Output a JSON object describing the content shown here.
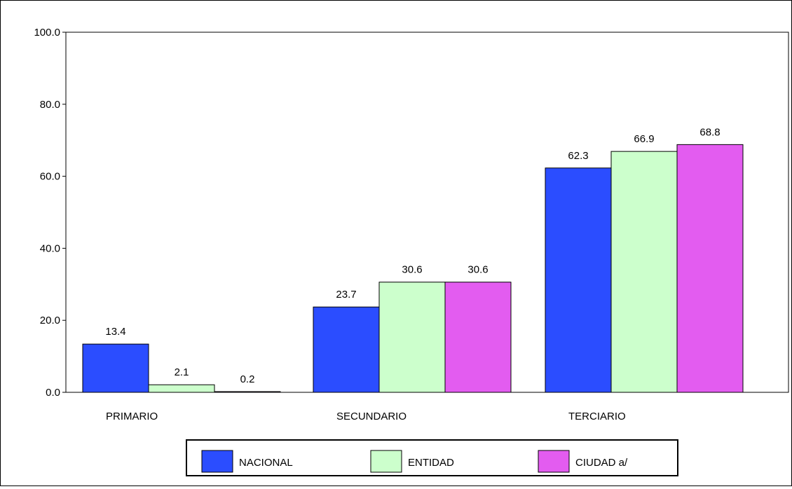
{
  "chart_data": {
    "type": "bar",
    "categories": [
      "PRIMARIO",
      "SECUNDARIO",
      "TERCIARIO"
    ],
    "series": [
      {
        "name": "NACIONAL",
        "color": "#2b4dff",
        "values": [
          13.4,
          23.7,
          62.3
        ],
        "labels": [
          "13.4",
          "23.7",
          "62.3"
        ]
      },
      {
        "name": "ENTIDAD",
        "color": "#ccffcc",
        "values": [
          2.1,
          30.6,
          66.9
        ],
        "labels": [
          "2.1",
          "30.6",
          "66.9"
        ]
      },
      {
        "name": "CIUDAD a/",
        "color": "#e35cf0",
        "values": [
          0.2,
          30.6,
          68.8
        ],
        "labels": [
          "0.2",
          "30.6",
          "68.8"
        ]
      }
    ],
    "ylim": [
      0,
      100
    ],
    "yticks": [
      "0.0",
      "20.0",
      "40.0",
      "60.0",
      "80.0",
      "100.0"
    ],
    "title": "",
    "xlabel": "",
    "ylabel": "",
    "grid": false,
    "legend": "bottom"
  }
}
